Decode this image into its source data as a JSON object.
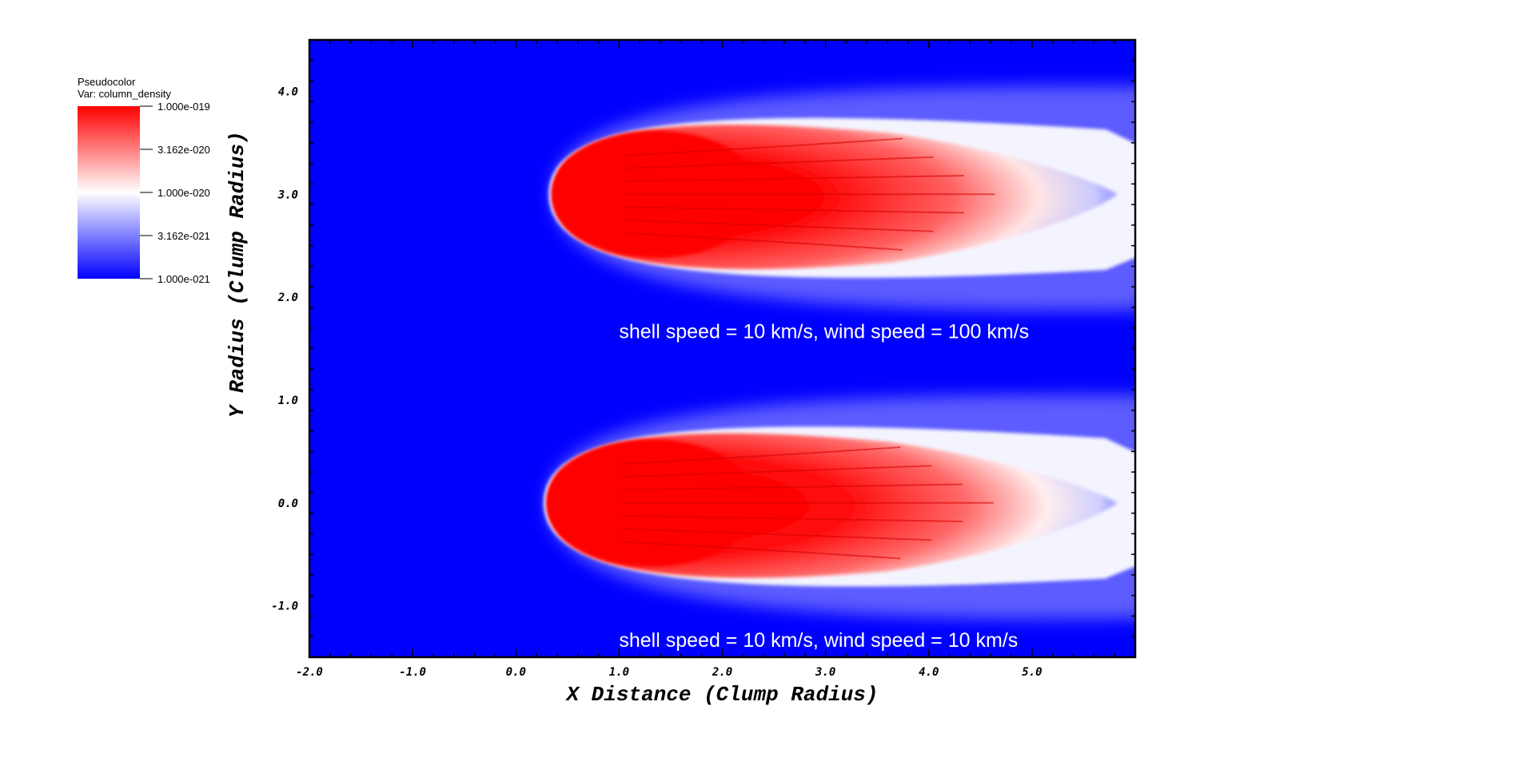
{
  "chart_data": {
    "type": "heatmap",
    "legend": {
      "title_line1": "Pseudocolor",
      "title_line2": "Var: column_density",
      "ticks": [
        "1.000e-019",
        "3.162e-020",
        "1.000e-020",
        "3.162e-021",
        "1.000e-021"
      ],
      "colors": {
        "high": "#ff0000",
        "mid": "#ffffff",
        "low": "#0000ff"
      },
      "scale": "log",
      "placement": "top-left"
    },
    "xlabel": "X Distance (Clump Radius)",
    "ylabel": "Y Radius (Clump Radius)",
    "xlim": [
      -2.0,
      6.0
    ],
    "ylim": [
      -1.5,
      4.5
    ],
    "xticks": [
      "-2.0",
      "-1.0",
      "0.0",
      "1.0",
      "2.0",
      "3.0",
      "4.0",
      "5.0"
    ],
    "yticks": [
      "-1.0",
      "0.0",
      "1.0",
      "2.0",
      "3.0",
      "4.0"
    ],
    "background_color": "#0000ff",
    "clumps": [
      {
        "center_y": 3.0,
        "front_x": 0.35,
        "annotation": "shell speed = 10 km/s, wind speed = 100 km/s",
        "annotation_x": 1.0,
        "annotation_y": 1.6
      },
      {
        "center_y": 0.0,
        "front_x": 0.3,
        "annotation": "shell speed = 10 km/s, wind speed = 10 km/s",
        "annotation_x": 1.0,
        "annotation_y": -1.4
      }
    ]
  }
}
